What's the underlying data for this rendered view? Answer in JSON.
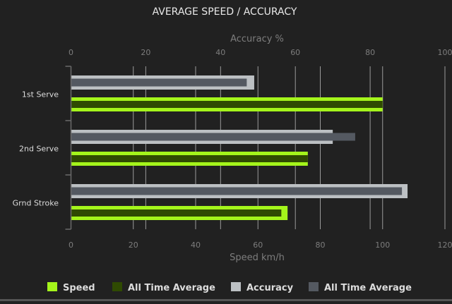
{
  "chart_data": {
    "type": "bar",
    "orientation": "horizontal",
    "title": "AVERAGE SPEED / ACCURACY",
    "categories": [
      "1st Serve",
      "2nd Serve",
      "Grnd Stroke"
    ],
    "x_top_axis": {
      "label": "Accuracy %",
      "range": [
        0,
        100
      ],
      "ticks": [
        "0",
        "20",
        "40",
        "60",
        "80",
        "100"
      ]
    },
    "x_bottom_axis": {
      "label": "Speed km/h",
      "range": [
        0,
        120
      ],
      "ticks": [
        "0",
        "20",
        "40",
        "60",
        "80",
        "100",
        "120"
      ]
    },
    "grid": true,
    "legend_position": "bottom",
    "series": [
      {
        "name": "Speed",
        "axis": "bottom",
        "color": "#a4f51b",
        "values": [
          100,
          76,
          69.5
        ]
      },
      {
        "name": "All Time Average",
        "axis": "bottom",
        "color": "#2f4a02",
        "values": [
          100,
          76,
          67.5
        ]
      },
      {
        "name": "Accuracy",
        "axis": "top",
        "color": "#bcc0c3",
        "values": [
          49,
          70,
          90
        ]
      },
      {
        "name": "All Time Average",
        "axis": "top",
        "color": "#545961",
        "values": [
          47,
          76,
          88.5
        ]
      }
    ]
  }
}
